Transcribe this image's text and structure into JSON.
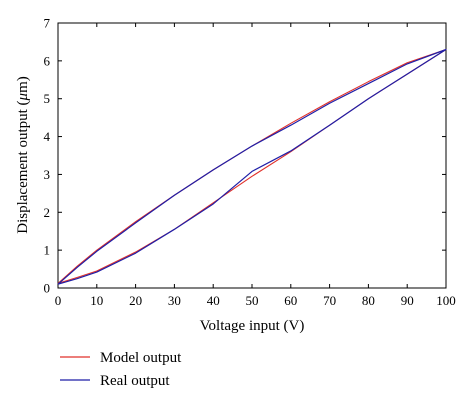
{
  "chart_data": {
    "type": "line",
    "title": "",
    "xlabel": "Voltage input (V)",
    "ylabel_prefix": "Displacement output (",
    "ylabel_unit_symbol": "μ",
    "ylabel_suffix": "m)",
    "xlim": [
      0,
      100
    ],
    "ylim": [
      0,
      7
    ],
    "x_ticks": [
      0,
      10,
      20,
      30,
      40,
      50,
      60,
      70,
      80,
      90,
      100
    ],
    "y_ticks": [
      0,
      1,
      2,
      3,
      4,
      5,
      6,
      7
    ],
    "grid": false,
    "legend_position": "bottom-left below plot",
    "series": [
      {
        "name": "Model output",
        "color": "#e0302a",
        "x": [
          0,
          5,
          10,
          20,
          30,
          40,
          50,
          60,
          70,
          80,
          90,
          100,
          90,
          80,
          70,
          60,
          50,
          40,
          30,
          20,
          10,
          5,
          0
        ],
        "y": [
          0.12,
          0.28,
          0.45,
          0.95,
          1.55,
          2.25,
          2.95,
          3.6,
          4.3,
          5.0,
          5.65,
          6.3,
          5.95,
          5.45,
          4.92,
          4.35,
          3.75,
          3.12,
          2.45,
          1.75,
          1.0,
          0.58,
          0.12
        ]
      },
      {
        "name": "Real output",
        "color": "#1f1fa8",
        "x": [
          0,
          5,
          10,
          20,
          30,
          40,
          50,
          60,
          70,
          80,
          90,
          100,
          90,
          80,
          70,
          60,
          50,
          40,
          30,
          20,
          10,
          5,
          0
        ],
        "y": [
          0.1,
          0.25,
          0.42,
          0.92,
          1.55,
          2.22,
          3.08,
          3.62,
          4.3,
          5.0,
          5.65,
          6.3,
          5.92,
          5.4,
          4.88,
          4.3,
          3.75,
          3.12,
          2.45,
          1.72,
          0.97,
          0.55,
          0.1
        ]
      }
    ]
  }
}
